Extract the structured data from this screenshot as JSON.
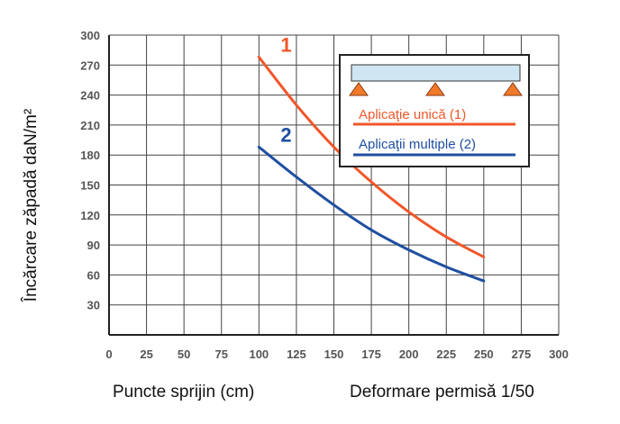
{
  "chart_data": {
    "type": "line",
    "xlabel": "Puncte sprijin (cm)",
    "xlabel_right": "Deformare permisă 1/50",
    "ylabel": "Încărcare zăpadă daN/m²",
    "xlim": [
      0,
      300
    ],
    "ylim": [
      0,
      300
    ],
    "x_ticks": [
      0,
      25,
      50,
      75,
      100,
      125,
      150,
      175,
      200,
      225,
      250,
      275,
      300
    ],
    "y_ticks": [
      30,
      60,
      90,
      120,
      150,
      180,
      210,
      240,
      270,
      300
    ],
    "grid": true,
    "legend_position": "top-right",
    "series": [
      {
        "name": "Aplicaţie unică (1)",
        "label": "1",
        "color": "#f0572a",
        "x": [
          100,
          125,
          150,
          175,
          200,
          225,
          250
        ],
        "y": [
          278,
          230,
          188,
          153,
          123,
          98,
          78
        ]
      },
      {
        "name": "Aplicaţii multiple (2)",
        "label": "2",
        "color": "#1f4fa0",
        "x": [
          100,
          125,
          150,
          175,
          200,
          225,
          250
        ],
        "y": [
          188,
          158,
          130,
          105,
          85,
          68,
          54
        ]
      }
    ]
  },
  "colors": {
    "grid": "#444444",
    "beam": "#cfe6f2",
    "support": "#f07a2a"
  }
}
